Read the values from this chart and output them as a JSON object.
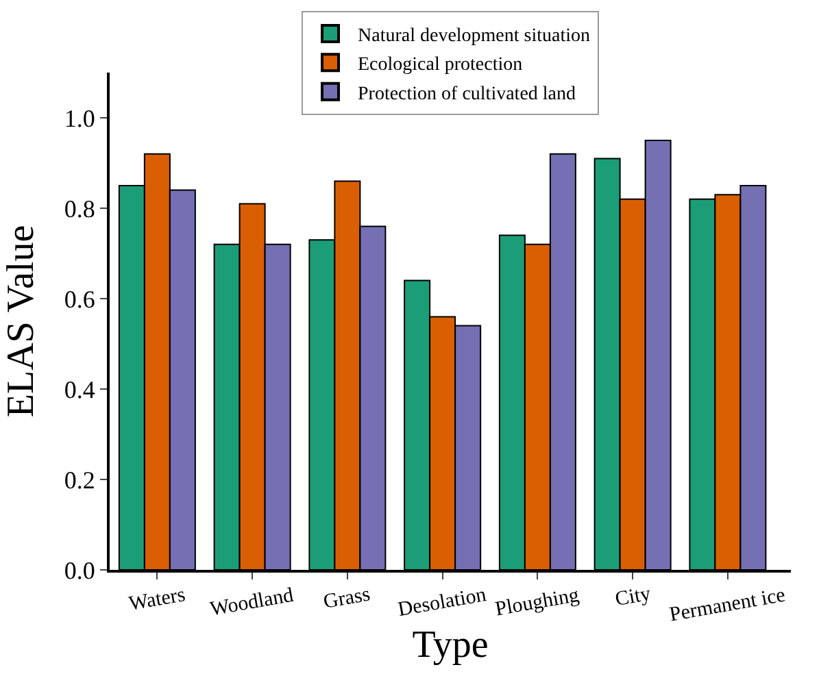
{
  "chart_data": {
    "type": "bar",
    "xlabel": "Type",
    "ylabel": "ELAS Value",
    "categories": [
      "Waters",
      "Woodland",
      "Grass",
      "Desolation",
      "Ploughing",
      "City",
      "Permanent ice"
    ],
    "series": [
      {
        "name": "Natural development situation",
        "color": "#1b9e77",
        "values": [
          0.85,
          0.72,
          0.73,
          0.64,
          0.74,
          0.91,
          0.82
        ]
      },
      {
        "name": "Ecological protection",
        "color": "#d95f02",
        "values": [
          0.92,
          0.81,
          0.86,
          0.56,
          0.72,
          0.82,
          0.83
        ]
      },
      {
        "name": "Protection of cultivated land",
        "color": "#7570b3",
        "values": [
          0.84,
          0.72,
          0.76,
          0.54,
          0.92,
          0.95,
          0.85
        ]
      }
    ],
    "ylim": [
      0,
      1.1
    ],
    "yticks": [
      {
        "value": 0,
        "label": "0.0"
      },
      {
        "value": 0.2,
        "label": "0.2"
      },
      {
        "value": 0.4,
        "label": "0.4"
      },
      {
        "value": 0.6,
        "label": "0.6"
      },
      {
        "value": 0.8,
        "label": "0.8"
      },
      {
        "value": 1.0,
        "label": "1.0"
      }
    ],
    "legend": "top"
  }
}
